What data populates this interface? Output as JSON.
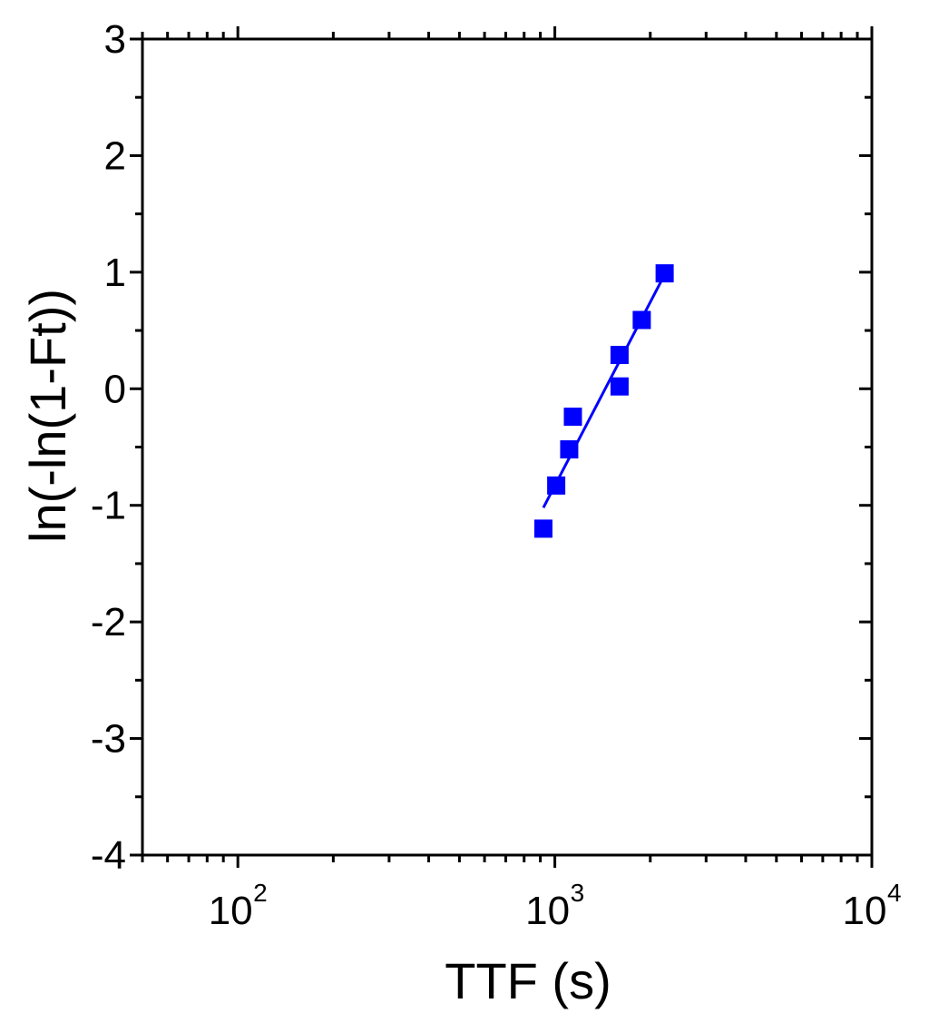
{
  "chart_data": {
    "type": "scatter",
    "title": "",
    "xlabel": "TTF (s)",
    "ylabel": "ln(-ln(1-Ft))",
    "xscale": "log",
    "xlim": [
      50,
      10000
    ],
    "ylim": [
      -4,
      3
    ],
    "xticks": [
      {
        "base": "10",
        "exp": "2",
        "value": 100
      },
      {
        "base": "10",
        "exp": "3",
        "value": 1000
      },
      {
        "base": "10",
        "exp": "4",
        "value": 10000
      }
    ],
    "yticks": [
      {
        "label": "3",
        "value": 3
      },
      {
        "label": "2",
        "value": 2
      },
      {
        "label": "1",
        "value": 1
      },
      {
        "label": "0",
        "value": 0
      },
      {
        "label": "-1",
        "value": -1
      },
      {
        "label": "-2",
        "value": -2
      },
      {
        "label": "-3",
        "value": -3
      },
      {
        "label": "-4",
        "value": -4
      }
    ],
    "grid": false,
    "color": "#0000ff",
    "points": [
      {
        "x": 920,
        "y": -1.2
      },
      {
        "x": 1010,
        "y": -0.83
      },
      {
        "x": 1110,
        "y": -0.52
      },
      {
        "x": 1140,
        "y": -0.24
      },
      {
        "x": 1600,
        "y": 0.02
      },
      {
        "x": 1600,
        "y": 0.29
      },
      {
        "x": 1880,
        "y": 0.59
      },
      {
        "x": 2220,
        "y": 0.99
      }
    ],
    "fit_line": {
      "x": [
        920,
        2220
      ],
      "y": [
        -1.02,
        0.98
      ]
    }
  }
}
